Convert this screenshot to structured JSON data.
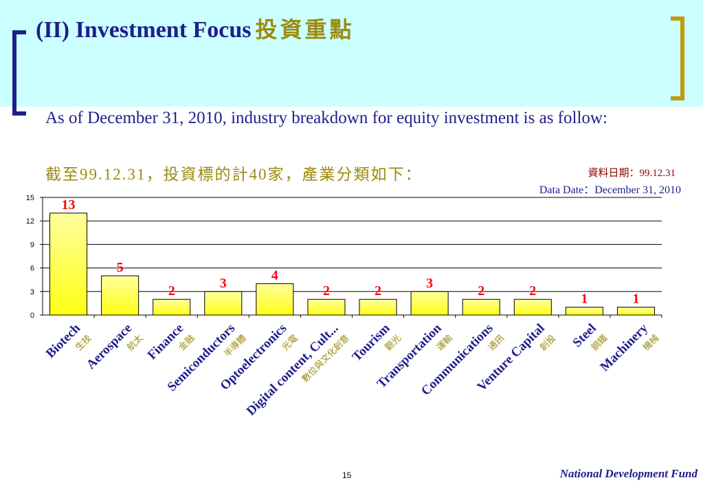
{
  "header": {
    "title_en": "(II) Investment Focus",
    "title_zh": "投資重點"
  },
  "subtitle": {
    "en": "As of December 31, 2010, industry breakdown for equity investment is as follow:",
    "zh": "截至99.12.31，投資標的計40家，產業分類如下："
  },
  "data_date": {
    "zh": "資料日期：99.12.31",
    "en": "Data Date：December 31, 2010"
  },
  "footer": {
    "page_number": "15",
    "brand": "National Development Fund"
  },
  "colors": {
    "bar_top": "#ffff9e",
    "bar_bottom": "#ffff14",
    "value_label": "#ff0000",
    "category_en": "#1e1e8c",
    "category_zh": "#9c8a10"
  },
  "chart_data": {
    "type": "bar",
    "title": "",
    "xlabel": "",
    "ylabel": "",
    "ylim": [
      0,
      15
    ],
    "yticks": [
      0,
      3,
      6,
      9,
      12,
      15
    ],
    "grid": true,
    "categories": [
      "Biotech",
      "Aerospace",
      "Finance",
      "Semiconductors",
      "Optoelectronics",
      "Digital content, Cult...",
      "Tourism",
      "Transportation",
      "Communications",
      "Venture Capital",
      "Steel",
      "Machinery"
    ],
    "categories_zh": [
      "生技",
      "航太",
      "金融",
      "半導體",
      "光電",
      "數位與文化創意",
      "觀光",
      "運輸",
      "通訊",
      "創投",
      "鋼鐵",
      "機械"
    ],
    "values": [
      13,
      5,
      2,
      3,
      4,
      2,
      2,
      3,
      2,
      2,
      1,
      1
    ]
  }
}
